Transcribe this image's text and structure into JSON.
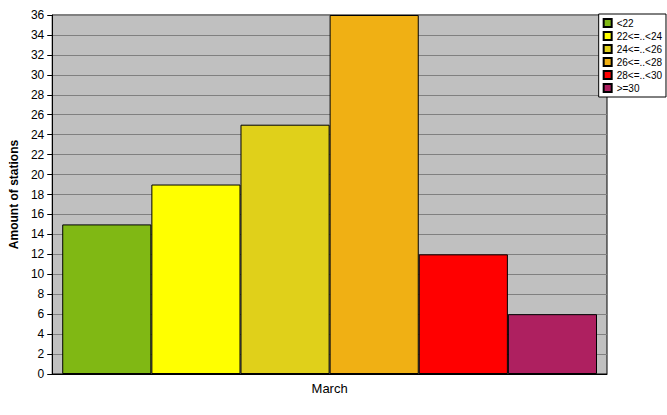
{
  "chart_data": {
    "type": "bar",
    "categories": [
      "March"
    ],
    "series": [
      {
        "name": "<22",
        "color": "#80b814",
        "values": [
          15
        ]
      },
      {
        "name": "22<=..<24",
        "color": "#ffff00",
        "values": [
          19
        ]
      },
      {
        "name": "24<=..<26",
        "color": "#e0d01a",
        "values": [
          25
        ]
      },
      {
        "name": "26<=..<28",
        "color": "#f0b014",
        "values": [
          36
        ]
      },
      {
        "name": "28<=..<30",
        "color": "#ff0000",
        "values": [
          12
        ]
      },
      {
        "name": ">=30",
        "color": "#ae2060",
        "values": [
          6
        ]
      }
    ],
    "ylabel": "Amount of stations",
    "ylim": [
      0,
      36
    ],
    "yticks": [
      0,
      2,
      4,
      6,
      8,
      10,
      12,
      14,
      16,
      18,
      20,
      22,
      24,
      26,
      28,
      30,
      32,
      34,
      36
    ],
    "grid": true,
    "legend": "top-right"
  }
}
